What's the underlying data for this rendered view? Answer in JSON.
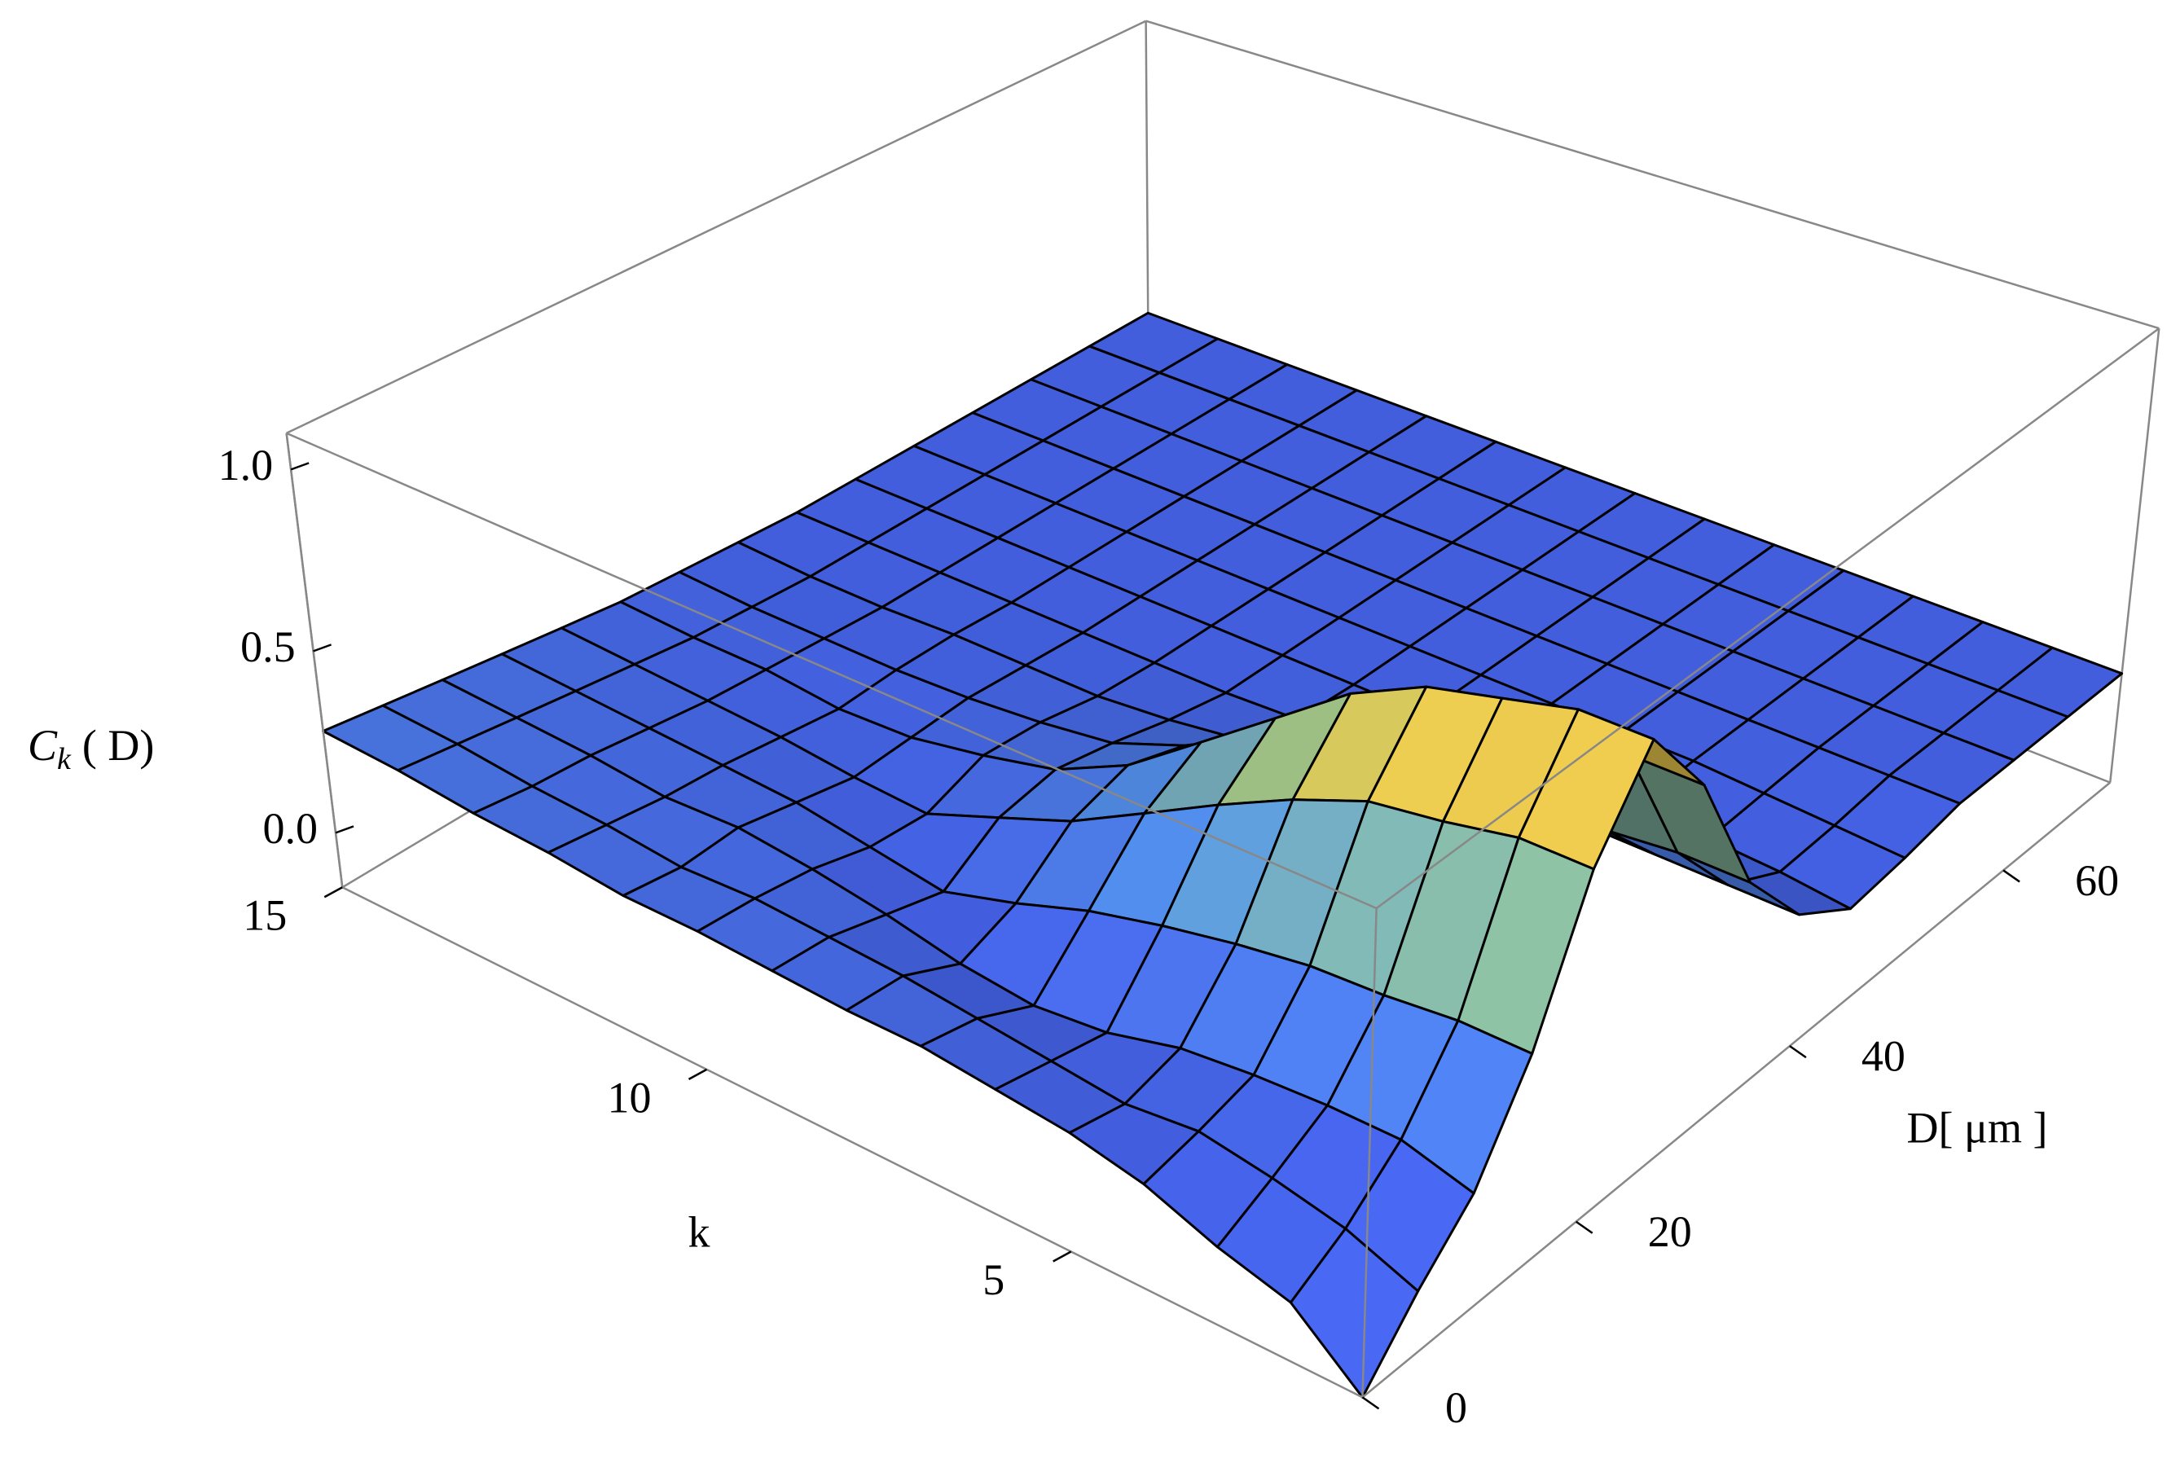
{
  "chart_data": {
    "type": "surface",
    "x_label": "k",
    "y_label": "D[ μm ]",
    "z_label": {
      "main": "C",
      "sub": "k",
      "tail": "( D)"
    },
    "x": [
      1,
      2,
      3,
      4,
      5,
      6,
      7,
      8,
      9,
      10,
      11,
      12,
      13,
      14,
      15
    ],
    "y": [
      0,
      5,
      10,
      15,
      20,
      25,
      30,
      35,
      40,
      45,
      50,
      55,
      60,
      65,
      70
    ],
    "z": [
      [
        -0.15,
        0.01,
        0.15,
        0.4,
        0.77,
        1.0,
        0.77,
        0.4,
        0.2,
        0.1,
        0.12,
        0.15,
        0.15,
        0.15,
        0.15
      ],
      [
        0.0,
        0.08,
        0.2,
        0.4,
        0.77,
        1.0,
        0.77,
        0.4,
        0.2,
        0.12,
        0.13,
        0.15,
        0.15,
        0.15,
        0.15
      ],
      [
        0.05,
        0.12,
        0.2,
        0.38,
        0.73,
        0.95,
        0.73,
        0.38,
        0.2,
        0.13,
        0.14,
        0.15,
        0.15,
        0.15,
        0.15
      ],
      [
        0.12,
        0.15,
        0.19,
        0.37,
        0.7,
        0.9,
        0.7,
        0.37,
        0.2,
        0.14,
        0.15,
        0.15,
        0.15,
        0.15,
        0.15
      ],
      [
        0.16,
        0.13,
        0.17,
        0.34,
        0.62,
        0.8,
        0.62,
        0.34,
        0.19,
        0.15,
        0.15,
        0.15,
        0.15,
        0.15,
        0.15
      ],
      [
        0.18,
        0.15,
        0.12,
        0.3,
        0.52,
        0.65,
        0.52,
        0.3,
        0.18,
        0.15,
        0.15,
        0.15,
        0.15,
        0.15,
        0.15
      ],
      [
        0.2,
        0.17,
        0.1,
        0.25,
        0.41,
        0.5,
        0.41,
        0.25,
        0.17,
        0.15,
        0.15,
        0.15,
        0.15,
        0.15,
        0.15
      ],
      [
        0.2,
        0.19,
        0.12,
        0.18,
        0.3,
        0.35,
        0.3,
        0.21,
        0.16,
        0.15,
        0.15,
        0.15,
        0.15,
        0.15,
        0.15
      ],
      [
        0.21,
        0.2,
        0.16,
        0.12,
        0.22,
        0.25,
        0.22,
        0.18,
        0.15,
        0.15,
        0.15,
        0.15,
        0.15,
        0.15,
        0.15
      ],
      [
        0.22,
        0.21,
        0.19,
        0.15,
        0.14,
        0.2,
        0.19,
        0.16,
        0.15,
        0.15,
        0.15,
        0.15,
        0.15,
        0.15,
        0.15
      ],
      [
        0.22,
        0.2,
        0.21,
        0.18,
        0.15,
        0.16,
        0.17,
        0.16,
        0.15,
        0.15,
        0.15,
        0.15,
        0.15,
        0.15,
        0.15
      ],
      [
        0.24,
        0.22,
        0.2,
        0.19,
        0.17,
        0.15,
        0.16,
        0.16,
        0.15,
        0.15,
        0.15,
        0.15,
        0.15,
        0.15,
        0.15
      ],
      [
        0.25,
        0.23,
        0.22,
        0.2,
        0.18,
        0.17,
        0.16,
        0.15,
        0.15,
        0.15,
        0.15,
        0.15,
        0.15,
        0.15,
        0.15
      ],
      [
        0.27,
        0.25,
        0.23,
        0.21,
        0.19,
        0.17,
        0.16,
        0.15,
        0.15,
        0.15,
        0.15,
        0.15,
        0.15,
        0.15,
        0.15
      ],
      [
        0.28,
        0.26,
        0.24,
        0.22,
        0.2,
        0.18,
        0.17,
        0.16,
        0.15,
        0.15,
        0.15,
        0.15,
        0.15,
        0.15,
        0.15
      ]
    ],
    "xlim": [
      1,
      15
    ],
    "ylim": [
      0,
      70
    ],
    "zlim": [
      -0.15,
      1.1
    ],
    "xticks": [
      5,
      10,
      15
    ],
    "yticks": [
      0,
      20,
      40,
      60
    ],
    "zticks": [
      {
        "value": 0,
        "label": "0.0"
      },
      {
        "value": 0.5,
        "label": "0.5"
      },
      {
        "value": 1,
        "label": "1.0"
      }
    ],
    "mesh": true,
    "box": true
  }
}
